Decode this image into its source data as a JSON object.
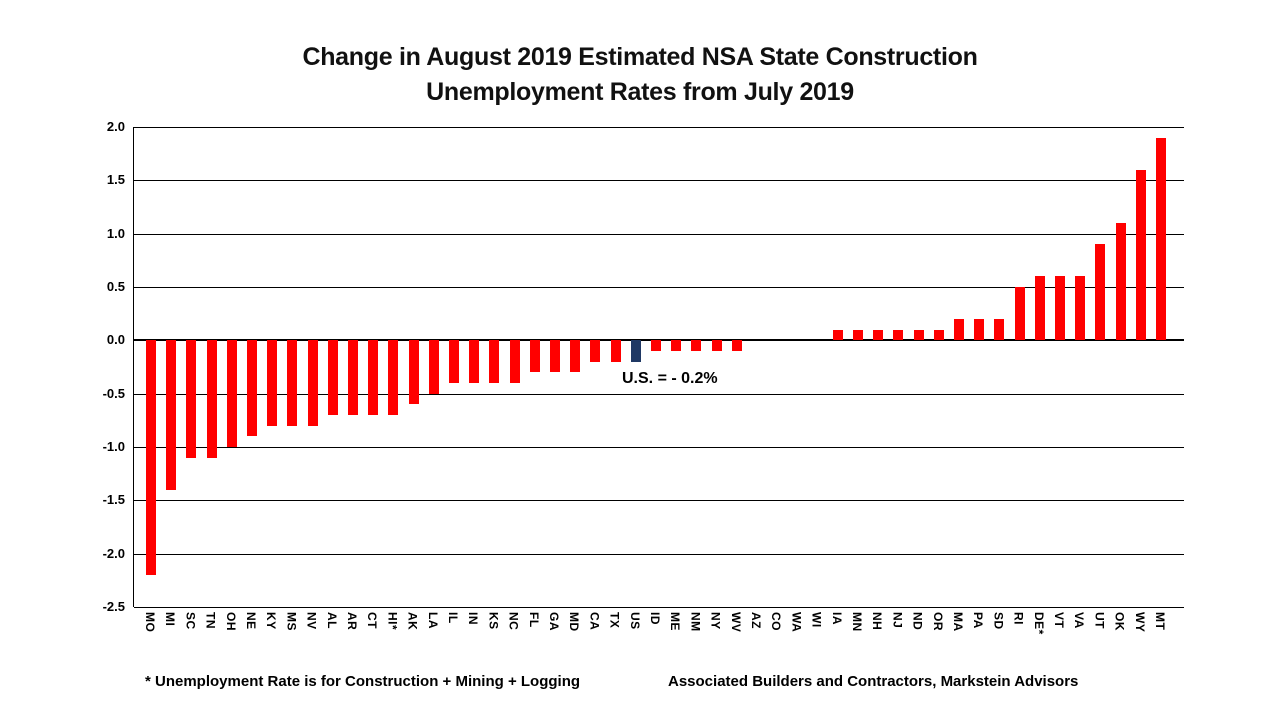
{
  "chart_data": {
    "type": "bar",
    "title": "Change in August 2019 Estimated NSA State Construction Unemployment Rates from July 2019",
    "title_line1": "Change in August 2019 Estimated NSA State Construction",
    "title_line2": "Unemployment Rates from July 2019",
    "categories": [
      "MO",
      "MI",
      "SC",
      "TN",
      "OH",
      "NE",
      "KY",
      "MS",
      "NV",
      "AL",
      "AR",
      "CT",
      "HI*",
      "AK",
      "LA",
      "IL",
      "IN",
      "KS",
      "NC",
      "FL",
      "GA",
      "MD",
      "CA",
      "TX",
      "US",
      "ID",
      "ME",
      "NM",
      "NY",
      "WV",
      "AZ",
      "CO",
      "WA",
      "WI",
      "IA",
      "MN",
      "NH",
      "NJ",
      "ND",
      "OR",
      "MA",
      "PA",
      "SD",
      "RI",
      "DE*",
      "VT",
      "VA",
      "UT",
      "OK",
      "WY",
      "MT"
    ],
    "values": [
      -2.2,
      -1.4,
      -1.1,
      -1.1,
      -1.0,
      -0.9,
      -0.8,
      -0.8,
      -0.8,
      -0.7,
      -0.7,
      -0.7,
      -0.7,
      -0.6,
      -0.5,
      -0.4,
      -0.4,
      -0.4,
      -0.4,
      -0.3,
      -0.3,
      -0.3,
      -0.2,
      -0.2,
      -0.2,
      -0.1,
      -0.1,
      -0.1,
      -0.1,
      -0.1,
      0.0,
      0.0,
      0.0,
      0.0,
      0.1,
      0.1,
      0.1,
      0.1,
      0.1,
      0.1,
      0.2,
      0.2,
      0.2,
      0.5,
      0.6,
      0.6,
      0.6,
      0.9,
      1.1,
      1.6,
      1.9
    ],
    "highlight_category": "US",
    "annotation": "U.S. = - 0.2%",
    "y_ticks": [
      "2.0",
      "1.5",
      "1.0",
      "0.5",
      "0.0",
      "-0.5",
      "-1.0",
      "-1.5",
      "-2.0",
      "-2.5"
    ],
    "ylim": [
      -2.5,
      2.0
    ],
    "grid": true,
    "legend": "none",
    "bar_color": "#FF0000",
    "highlight_color": "#1F3864",
    "footnote": "* Unemployment Rate is for Construction + Mining + Logging",
    "source": "Associated Builders and Contractors, Markstein Advisors"
  }
}
